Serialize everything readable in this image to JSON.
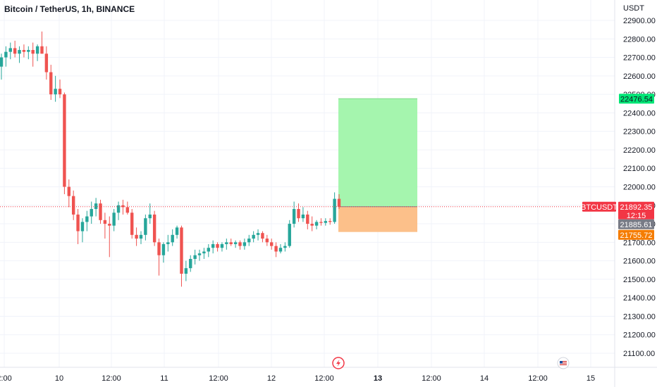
{
  "header": {
    "symbol_title": "Bitcoin / TetherUS, 1h, BINANCE"
  },
  "chart_data": {
    "type": "candlestick",
    "title": "Bitcoin / TetherUS, 1h, BINANCE",
    "currency": "USDT",
    "y_ticks": [
      21100,
      21200,
      21300,
      21400,
      21500,
      21600,
      21700,
      21800,
      21900,
      22000,
      22100,
      22200,
      22300,
      22400,
      22500,
      22600,
      22700,
      22800,
      22900
    ],
    "y_tick_labels": [
      "21100.00",
      "21200.00",
      "21300.00",
      "21400.00",
      "21500.00",
      "21600.00",
      "21700.00",
      "21800.00",
      "21900.00",
      "22000.00",
      "22100.00",
      "22200.00",
      "22300.00",
      "22400.00",
      "22500.00",
      "22600.00",
      "22700.00",
      "22800.00",
      "22900.00"
    ],
    "x_tick_labels": [
      "2:00",
      "10",
      "12:00",
      "11",
      "12:00",
      "12",
      "12:00",
      "13",
      "12:00",
      "14",
      "12:00",
      "15"
    ],
    "x_tick_bold": [
      false,
      false,
      false,
      false,
      false,
      false,
      false,
      true,
      false,
      false,
      false,
      false
    ],
    "up_color": "#26a69a",
    "down_color": "#ef5350",
    "candles": [
      {
        "o": 22650,
        "h": 22720,
        "l": 22580,
        "c": 22700
      },
      {
        "o": 22700,
        "h": 22760,
        "l": 22650,
        "c": 22730
      },
      {
        "o": 22730,
        "h": 22780,
        "l": 22690,
        "c": 22750
      },
      {
        "o": 22750,
        "h": 22790,
        "l": 22700,
        "c": 22720
      },
      {
        "o": 22720,
        "h": 22760,
        "l": 22670,
        "c": 22740
      },
      {
        "o": 22740,
        "h": 22770,
        "l": 22700,
        "c": 22730
      },
      {
        "o": 22730,
        "h": 22760,
        "l": 22690,
        "c": 22740
      },
      {
        "o": 22740,
        "h": 22780,
        "l": 22650,
        "c": 22720
      },
      {
        "o": 22720,
        "h": 22770,
        "l": 22680,
        "c": 22760
      },
      {
        "o": 22760,
        "h": 22840,
        "l": 22720,
        "c": 22720
      },
      {
        "o": 22720,
        "h": 22760,
        "l": 22580,
        "c": 22620
      },
      {
        "o": 22620,
        "h": 22660,
        "l": 22470,
        "c": 22500
      },
      {
        "o": 22500,
        "h": 22600,
        "l": 22460,
        "c": 22530
      },
      {
        "o": 22530,
        "h": 22580,
        "l": 22480,
        "c": 22500
      },
      {
        "o": 22500,
        "h": 22510,
        "l": 21960,
        "c": 22000
      },
      {
        "o": 22000,
        "h": 22040,
        "l": 21890,
        "c": 21950
      },
      {
        "o": 21950,
        "h": 21980,
        "l": 21820,
        "c": 21850
      },
      {
        "o": 21850,
        "h": 21880,
        "l": 21690,
        "c": 21760
      },
      {
        "o": 21760,
        "h": 21830,
        "l": 21700,
        "c": 21810
      },
      {
        "o": 21810,
        "h": 21870,
        "l": 21760,
        "c": 21840
      },
      {
        "o": 21840,
        "h": 21920,
        "l": 21800,
        "c": 21880
      },
      {
        "o": 21880,
        "h": 21940,
        "l": 21840,
        "c": 21910
      },
      {
        "o": 21910,
        "h": 21930,
        "l": 21800,
        "c": 21820
      },
      {
        "o": 21820,
        "h": 21860,
        "l": 21720,
        "c": 21800
      },
      {
        "o": 21800,
        "h": 21840,
        "l": 21620,
        "c": 21790
      },
      {
        "o": 21790,
        "h": 21880,
        "l": 21760,
        "c": 21860
      },
      {
        "o": 21860,
        "h": 21920,
        "l": 21820,
        "c": 21900
      },
      {
        "o": 21900,
        "h": 21930,
        "l": 21850,
        "c": 21890
      },
      {
        "o": 21890,
        "h": 21920,
        "l": 21850,
        "c": 21860
      },
      {
        "o": 21860,
        "h": 21880,
        "l": 21720,
        "c": 21740
      },
      {
        "o": 21740,
        "h": 21780,
        "l": 21680,
        "c": 21720
      },
      {
        "o": 21720,
        "h": 21760,
        "l": 21690,
        "c": 21740
      },
      {
        "o": 21740,
        "h": 21850,
        "l": 21710,
        "c": 21830
      },
      {
        "o": 21830,
        "h": 21910,
        "l": 21800,
        "c": 21850
      },
      {
        "o": 21850,
        "h": 21870,
        "l": 21680,
        "c": 21700
      },
      {
        "o": 21700,
        "h": 21720,
        "l": 21520,
        "c": 21630
      },
      {
        "o": 21630,
        "h": 21700,
        "l": 21590,
        "c": 21690
      },
      {
        "o": 21690,
        "h": 21740,
        "l": 21650,
        "c": 21700
      },
      {
        "o": 21700,
        "h": 21770,
        "l": 21680,
        "c": 21740
      },
      {
        "o": 21740,
        "h": 21790,
        "l": 21720,
        "c": 21780
      },
      {
        "o": 21780,
        "h": 21790,
        "l": 21460,
        "c": 21530
      },
      {
        "o": 21530,
        "h": 21600,
        "l": 21490,
        "c": 21560
      },
      {
        "o": 21560,
        "h": 21630,
        "l": 21540,
        "c": 21610
      },
      {
        "o": 21610,
        "h": 21660,
        "l": 21580,
        "c": 21630
      },
      {
        "o": 21630,
        "h": 21660,
        "l": 21600,
        "c": 21640
      },
      {
        "o": 21640,
        "h": 21670,
        "l": 21610,
        "c": 21650
      },
      {
        "o": 21650,
        "h": 21690,
        "l": 21620,
        "c": 21670
      },
      {
        "o": 21670,
        "h": 21710,
        "l": 21640,
        "c": 21690
      },
      {
        "o": 21690,
        "h": 21700,
        "l": 21650,
        "c": 21670
      },
      {
        "o": 21670,
        "h": 21700,
        "l": 21650,
        "c": 21690
      },
      {
        "o": 21690,
        "h": 21720,
        "l": 21660,
        "c": 21700
      },
      {
        "o": 21700,
        "h": 21720,
        "l": 21680,
        "c": 21690
      },
      {
        "o": 21690,
        "h": 21710,
        "l": 21670,
        "c": 21700
      },
      {
        "o": 21700,
        "h": 21710,
        "l": 21660,
        "c": 21680
      },
      {
        "o": 21680,
        "h": 21720,
        "l": 21660,
        "c": 21700
      },
      {
        "o": 21700,
        "h": 21740,
        "l": 21680,
        "c": 21720
      },
      {
        "o": 21720,
        "h": 21760,
        "l": 21700,
        "c": 21740
      },
      {
        "o": 21740,
        "h": 21770,
        "l": 21710,
        "c": 21750
      },
      {
        "o": 21750,
        "h": 21760,
        "l": 21700,
        "c": 21720
      },
      {
        "o": 21720,
        "h": 21740,
        "l": 21680,
        "c": 21700
      },
      {
        "o": 21700,
        "h": 21720,
        "l": 21660,
        "c": 21680
      },
      {
        "o": 21680,
        "h": 21700,
        "l": 21620,
        "c": 21650
      },
      {
        "o": 21650,
        "h": 21690,
        "l": 21640,
        "c": 21670
      },
      {
        "o": 21670,
        "h": 21700,
        "l": 21650,
        "c": 21680
      },
      {
        "o": 21680,
        "h": 21820,
        "l": 21670,
        "c": 21800
      },
      {
        "o": 21800,
        "h": 21920,
        "l": 21780,
        "c": 21880
      },
      {
        "o": 21880,
        "h": 21910,
        "l": 21810,
        "c": 21830
      },
      {
        "o": 21830,
        "h": 21890,
        "l": 21810,
        "c": 21850
      },
      {
        "o": 21850,
        "h": 21870,
        "l": 21770,
        "c": 21800
      },
      {
        "o": 21800,
        "h": 21840,
        "l": 21760,
        "c": 21790
      },
      {
        "o": 21790,
        "h": 21820,
        "l": 21770,
        "c": 21810
      },
      {
        "o": 21810,
        "h": 21830,
        "l": 21790,
        "c": 21805
      },
      {
        "o": 21805,
        "h": 21830,
        "l": 21790,
        "c": 21815
      },
      {
        "o": 21815,
        "h": 21830,
        "l": 21795,
        "c": 21810
      },
      {
        "o": 21810,
        "h": 21970,
        "l": 21800,
        "c": 21935
      },
      {
        "o": 21935,
        "h": 21960,
        "l": 21880,
        "c": 21892.35
      }
    ],
    "position": {
      "target_price": 22476.54,
      "entry_price": 21892.35,
      "stop_price": 21755.72
    },
    "price_tags": [
      {
        "label": "22476.54",
        "bg": "#00e676",
        "fg": "#131722"
      },
      {
        "label": "BTCUSDT",
        "bg": "#f23645",
        "fg": "#ffffff"
      },
      {
        "label": "21892.35",
        "bg": "#f23645",
        "fg": "#ffffff"
      },
      {
        "label": "12:15",
        "bg": "#f23645",
        "fg": "#ffffff"
      },
      {
        "label": "21885.61",
        "bg": "#787b86",
        "fg": "#ffffff"
      },
      {
        "label": "21755.72",
        "bg": "#f57c00",
        "fg": "#ffffff"
      }
    ],
    "grid": true
  }
}
